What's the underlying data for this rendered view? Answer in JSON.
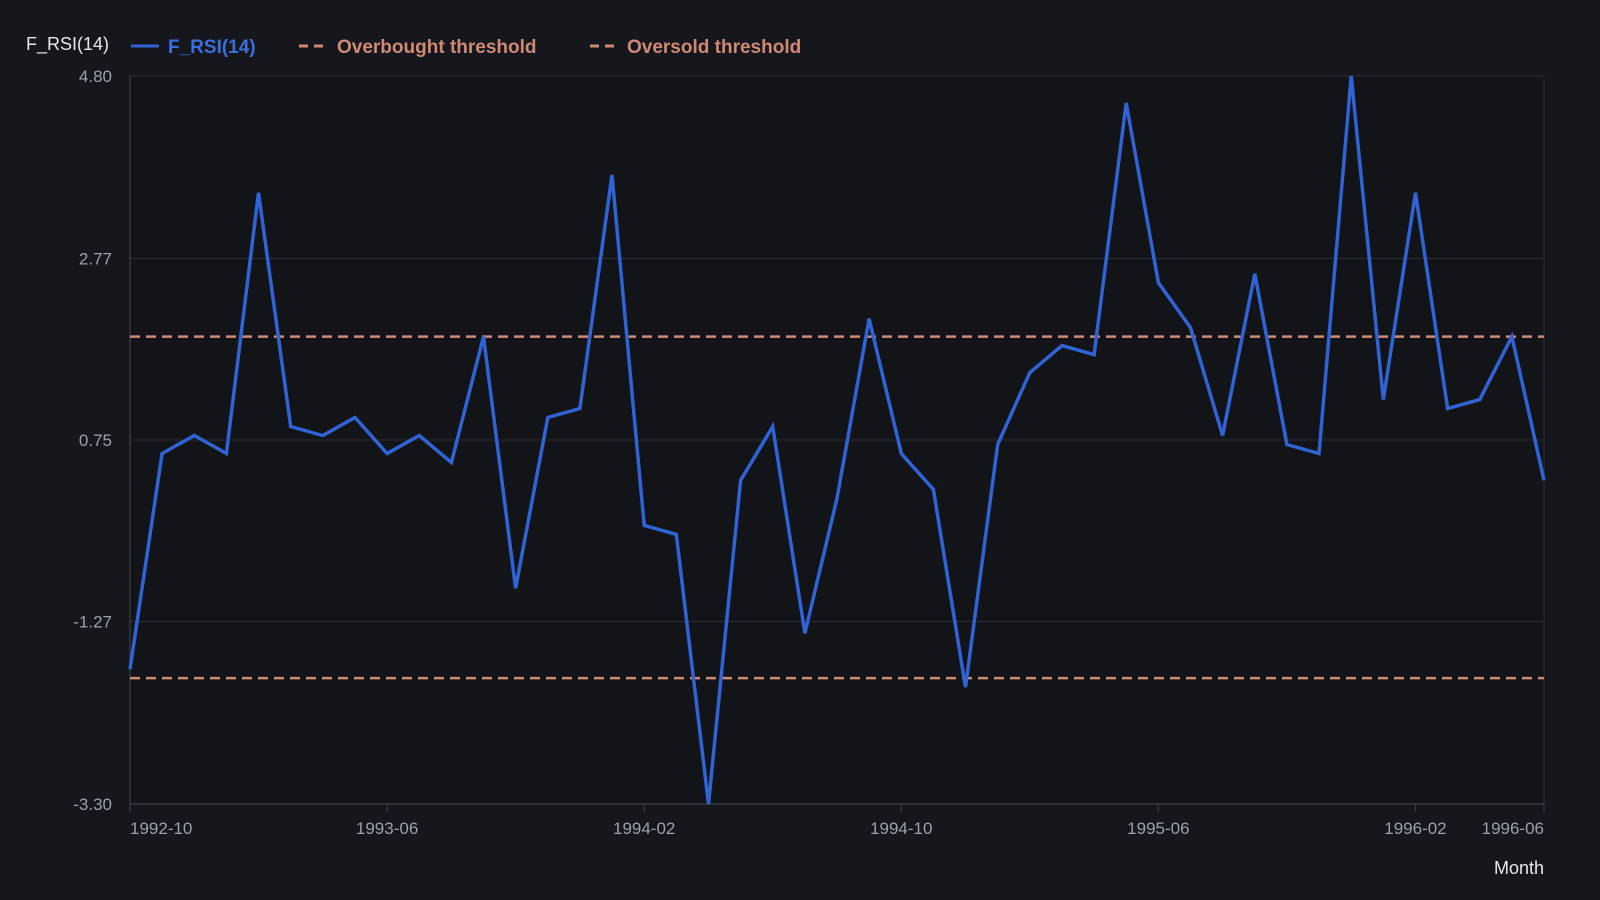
{
  "colors": {
    "background": "#15171c",
    "plot_background": "#121418",
    "grid": "#2b2f36",
    "axis": "#3a3f47",
    "series": "#2f63d6",
    "series_label": "#3a6fe0",
    "threshold": "#d08a74",
    "tick_text": "#9ba1aa",
    "title_text": "#e6e8eb"
  },
  "chart_data": {
    "type": "line",
    "ylabel": "F_RSI(14)",
    "xlabel": "Month",
    "ylim": [
      -3.3,
      4.8
    ],
    "yticks": [
      "4.80",
      "2.77",
      "0.75",
      "-1.27",
      "-3.30"
    ],
    "ytick_values": [
      4.8,
      2.77,
      0.75,
      -1.27,
      -3.3
    ],
    "x_start": "1992-10",
    "x_end": "1996-06",
    "xticks": [
      "1992-10",
      "1993-06",
      "1994-02",
      "1994-10",
      "1995-06",
      "1996-02",
      "1996-06"
    ],
    "grid": true,
    "legend_position": "top-left",
    "legend": [
      "F_RSI(14)",
      "Overbought threshold",
      "Oversold threshold"
    ],
    "series": [
      {
        "name": "F_RSI(14)",
        "style": "solid",
        "x": [
          "1992-10",
          "1992-11",
          "1992-12",
          "1993-01",
          "1993-02",
          "1993-03",
          "1993-04",
          "1993-05",
          "1993-06",
          "1993-07",
          "1993-08",
          "1993-09",
          "1993-10",
          "1993-11",
          "1993-12",
          "1994-01",
          "1994-02",
          "1994-03",
          "1994-04",
          "1994-05",
          "1994-06",
          "1994-07",
          "1994-08",
          "1994-09",
          "1994-10",
          "1994-11",
          "1994-12",
          "1995-01",
          "1995-02",
          "1995-03",
          "1995-04",
          "1995-05",
          "1995-06",
          "1995-07",
          "1995-08",
          "1995-09",
          "1995-10",
          "1995-11",
          "1995-12",
          "1996-01",
          "1996-02",
          "1996-03",
          "1996-04",
          "1996-05",
          "1996-06"
        ],
        "values": [
          -1.8,
          0.6,
          0.8,
          0.6,
          3.5,
          0.9,
          0.8,
          1.0,
          0.6,
          0.8,
          0.5,
          1.9,
          -0.9,
          1.0,
          1.1,
          3.7,
          -0.2,
          -0.3,
          -3.3,
          0.3,
          0.9,
          -1.4,
          0.1,
          2.1,
          0.6,
          0.2,
          -2.0,
          0.7,
          1.5,
          1.8,
          1.7,
          4.5,
          2.5,
          2.0,
          0.8,
          2.6,
          0.7,
          0.6,
          4.8,
          1.2,
          3.5,
          1.1,
          1.2,
          1.9,
          0.3
        ]
      },
      {
        "name": "Overbought threshold",
        "style": "dashed",
        "constant": 1.9
      },
      {
        "name": "Oversold threshold",
        "style": "dashed",
        "constant": -1.9
      }
    ]
  }
}
